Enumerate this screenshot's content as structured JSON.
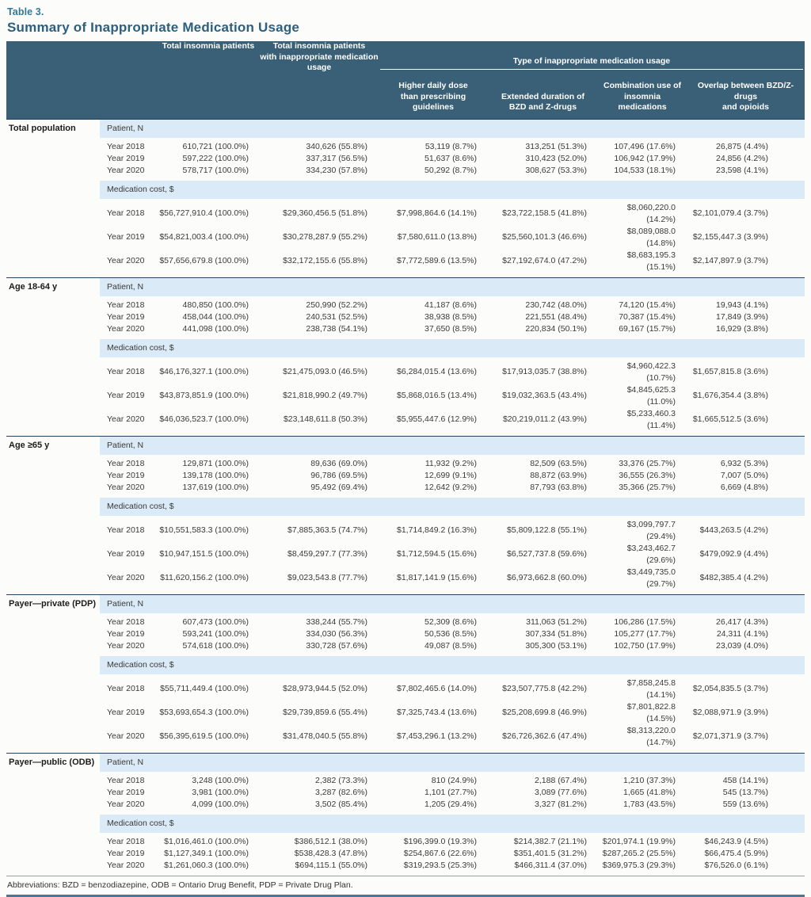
{
  "table_label": "Table 3.",
  "title": "Summary of Inappropriate Medication Usage",
  "colors": {
    "header_bg": "#3a6078",
    "band_bg": "#daeaf6",
    "table_label": "#2f7a9c",
    "title": "#2d5f7e",
    "section_rule": "#24425c",
    "bottom_rule": "#53748e"
  },
  "header": {
    "col_total": "Total insomnia patients",
    "col_inappropriate": "Total insomnia patients\nwith inappropriate medication\nusage",
    "group_label": "Type of inappropriate medication usage",
    "subcolumns": [
      "Higher daily dose\nthan prescribing guidelines",
      "Extended duration of\nBZD and Z-drugs",
      "Combination use of\ninsomnia medications",
      "Overlap between BZD/Z-drugs\nand opioids"
    ]
  },
  "sections": [
    {
      "label": "Total population",
      "groups": [
        {
          "label": "Patient, N",
          "rows": [
            {
              "year": "Year 2018",
              "values": [
                "610,721 (100.0%)",
                "340,626 (55.8%)",
                "53,119 (8.7%)",
                "313,251 (51.3%)",
                "107,496 (17.6%)",
                "26,875 (4.4%)"
              ]
            },
            {
              "year": "Year 2019",
              "values": [
                "597,222 (100.0%)",
                "337,317 (56.5%)",
                "51,637 (8.6%)",
                "310,423 (52.0%)",
                "106,942 (17.9%)",
                "24,856 (4.2%)"
              ]
            },
            {
              "year": "Year 2020",
              "values": [
                "578,717 (100.0%)",
                "334,230 (57.8%)",
                "50,292 (8.7%)",
                "308,627 (53.3%)",
                "104,533 (18.1%)",
                "23,598 (4.1%)"
              ]
            }
          ]
        },
        {
          "label": "Medication cost, $",
          "rows": [
            {
              "year": "Year 2018",
              "values": [
                "$56,727,910.4 (100.0%)",
                "$29,360,456.5 (51.8%)",
                "$7,998,864.6 (14.1%)",
                "$23,722,158.5 (41.8%)",
                "$8,060,220.0 (14.2%)",
                "$2,101,079.4 (3.7%)"
              ]
            },
            {
              "year": "Year 2019",
              "values": [
                "$54,821,003.4 (100.0%)",
                "$30,278,287.9 (55.2%)",
                "$7,580,611.0 (13.8%)",
                "$25,560,101.3 (46.6%)",
                "$8,089,088.0 (14.8%)",
                "$2,155,447.3 (3.9%)"
              ]
            },
            {
              "year": "Year 2020",
              "values": [
                "$57,656,679.8 (100.0%)",
                "$32,172,155.6 (55.8%)",
                "$7,772,589.6 (13.5%)",
                "$27,192,674.0 (47.2%)",
                "$8,683,195.3 (15.1%)",
                "$2,147,897.9 (3.7%)"
              ]
            }
          ]
        }
      ]
    },
    {
      "label": "Age 18-64 y",
      "groups": [
        {
          "label": "Patient, N",
          "rows": [
            {
              "year": "Year 2018",
              "values": [
                "480,850 (100.0%)",
                "250,990 (52.2%)",
                "41,187 (8.6%)",
                "230,742 (48.0%)",
                "74,120 (15.4%)",
                "19,943 (4.1%)"
              ]
            },
            {
              "year": "Year 2019",
              "values": [
                "458,044 (100.0%)",
                "240,531 (52.5%)",
                "38,938 (8.5%)",
                "221,551 (48.4%)",
                "70,387 (15.4%)",
                "17,849 (3.9%)"
              ]
            },
            {
              "year": "Year 2020",
              "values": [
                "441,098 (100.0%)",
                "238,738 (54.1%)",
                "37,650 (8.5%)",
                "220,834 (50.1%)",
                "69,167 (15.7%)",
                "16,929 (3.8%)"
              ]
            }
          ]
        },
        {
          "label": "Medication cost, $",
          "rows": [
            {
              "year": "Year 2018",
              "values": [
                "$46,176,327.1 (100.0%)",
                "$21,475,093.0 (46.5%)",
                "$6,284,015.4 (13.6%)",
                "$17,913,035.7 (38.8%)",
                "$4,960,422.3 (10.7%)",
                "$1,657,815.8 (3.6%)"
              ]
            },
            {
              "year": "Year 2019",
              "values": [
                "$43,873,851.9 (100.0%)",
                "$21,818,990.2 (49.7%)",
                "$5,868,016.5 (13.4%)",
                "$19,032,363.5 (43.4%)",
                "$4,845,625.3 (11.0%)",
                "$1,676,354.4 (3.8%)"
              ]
            },
            {
              "year": "Year 2020",
              "values": [
                "$46,036,523.7 (100.0%)",
                "$23,148,611.8 (50.3%)",
                "$5,955,447.6 (12.9%)",
                "$20,219,011.2 (43.9%)",
                "$5,233,460.3 (11.4%)",
                "$1,665,512.5 (3.6%)"
              ]
            }
          ]
        }
      ]
    },
    {
      "label": "Age ≥65 y",
      "groups": [
        {
          "label": "Patient, N",
          "rows": [
            {
              "year": "Year 2018",
              "values": [
                "129,871 (100.0%)",
                "89,636 (69.0%)",
                "11,932 (9.2%)",
                "82,509 (63.5%)",
                "33,376 (25.7%)",
                "6,932 (5.3%)"
              ]
            },
            {
              "year": "Year 2019",
              "values": [
                "139,178 (100.0%)",
                "96,786 (69.5%)",
                "12,699 (9.1%)",
                "88,872 (63.9%)",
                "36,555 (26.3%)",
                "7,007 (5.0%)"
              ]
            },
            {
              "year": "Year 2020",
              "values": [
                "137,619 (100.0%)",
                "95,492 (69.4%)",
                "12,642 (9.2%)",
                "87,793 (63.8%)",
                "35,366 (25.7%)",
                "6,669 (4.8%)"
              ]
            }
          ]
        },
        {
          "label": "Medication cost, $",
          "rows": [
            {
              "year": "Year 2018",
              "values": [
                "$10,551,583.3 (100.0%)",
                "$7,885,363.5 (74.7%)",
                "$1,714,849.2 (16.3%)",
                "$5,809,122.8 (55.1%)",
                "$3,099,797.7 (29.4%)",
                "$443,263.5 (4.2%)"
              ]
            },
            {
              "year": "Year 2019",
              "values": [
                "$10,947,151.5 (100.0%)",
                "$8,459,297.7 (77.3%)",
                "$1,712,594.5 (15.6%)",
                "$6,527,737.8 (59.6%)",
                "$3,243,462.7 (29.6%)",
                "$479,092.9 (4.4%)"
              ]
            },
            {
              "year": "Year 2020",
              "values": [
                "$11,620,156.2 (100.0%)",
                "$9,023,543.8 (77.7%)",
                "$1,817,141.9 (15.6%)",
                "$6,973,662.8 (60.0%)",
                "$3,449,735.0 (29.7%)",
                "$482,385.4 (4.2%)"
              ]
            }
          ]
        }
      ]
    },
    {
      "label": "Payer—private (PDP)",
      "groups": [
        {
          "label": "Patient, N",
          "rows": [
            {
              "year": "Year 2018",
              "values": [
                "607,473 (100.0%)",
                "338,244 (55.7%)",
                "52,309 (8.6%)",
                "311,063 (51.2%)",
                "106,286 (17.5%)",
                "26,417 (4.3%)"
              ]
            },
            {
              "year": "Year 2019",
              "values": [
                "593,241 (100.0%)",
                "334,030 (56.3%)",
                "50,536 (8.5%)",
                "307,334 (51.8%)",
                "105,277 (17.7%)",
                "24,311 (4.1%)"
              ]
            },
            {
              "year": "Year 2020",
              "values": [
                "574,618 (100.0%)",
                "330,728 (57.6%)",
                "49,087 (8.5%)",
                "305,300 (53.1%)",
                "102,750 (17.9%)",
                "23,039 (4.0%)"
              ]
            }
          ]
        },
        {
          "label": "Medication cost, $",
          "rows": [
            {
              "year": "Year 2018",
              "values": [
                "$55,711,449.4 (100.0%)",
                "$28,973,944.5 (52.0%)",
                "$7,802,465.6 (14.0%)",
                "$23,507,775.8 (42.2%)",
                "$7,858,245.8 (14.1%)",
                "$2,054,835.5 (3.7%)"
              ]
            },
            {
              "year": "Year 2019",
              "values": [
                "$53,693,654.3 (100.0%)",
                "$29,739,859.6 (55.4%)",
                "$7,325,743.4 (13.6%)",
                "$25,208,699.8 (46.9%)",
                "$7,801,822.8 (14.5%)",
                "$2,088,971.9 (3.9%)"
              ]
            },
            {
              "year": "Year 2020",
              "values": [
                "$56,395,619.5 (100.0%)",
                "$31,478,040.5 (55.8%)",
                "$7,453,296.1 (13.2%)",
                "$26,726,362.6 (47.4%)",
                "$8,313,220.0 (14.7%)",
                "$2,071,371.9 (3.7%)"
              ]
            }
          ]
        }
      ]
    },
    {
      "label": "Payer—public (ODB)",
      "groups": [
        {
          "label": "Patient, N",
          "rows": [
            {
              "year": "Year 2018",
              "values": [
                "3,248 (100.0%)",
                "2,382 (73.3%)",
                "810 (24.9%)",
                "2,188 (67.4%)",
                "1,210 (37.3%)",
                "458 (14.1%)"
              ]
            },
            {
              "year": "Year 2019",
              "values": [
                "3,981 (100.0%)",
                "3,287 (82.6%)",
                "1,101 (27.7%)",
                "3,089 (77.6%)",
                "1,665 (41.8%)",
                "545 (13.7%)"
              ]
            },
            {
              "year": "Year 2020",
              "values": [
                "4,099 (100.0%)",
                "3,502 (85.4%)",
                "1,205 (29.4%)",
                "3,327 (81.2%)",
                "1,783 (43.5%)",
                "559 (13.6%)"
              ]
            }
          ]
        },
        {
          "label": "Medication cost, $",
          "rows": [
            {
              "year": "Year 2018",
              "values": [
                "$1,016,461.0 (100.0%)",
                "$386,512.1 (38.0%)",
                "$196,399.0 (19.3%)",
                "$214,382.7 (21.1%)",
                "$201,974.1 (19.9%)",
                "$46,243.9 (4.5%)"
              ]
            },
            {
              "year": "Year 2019",
              "values": [
                "$1,127,349.1 (100.0%)",
                "$538,428.3 (47.8%)",
                "$254,867.6 (22.6%)",
                "$351,401.5 (31.2%)",
                "$287,265.2 (25.5%)",
                "$66,475.4 (5.9%)"
              ]
            },
            {
              "year": "Year 2020",
              "values": [
                "$1,261,060.3 (100.0%)",
                "$694,115.1 (55.0%)",
                "$319,293.5 (25.3%)",
                "$466,311.4 (37.0%)",
                "$369,975.3 (29.3%)",
                "$76,526.0 (6.1%)"
              ]
            }
          ]
        }
      ]
    }
  ],
  "footnote": "Abbreviations: BZD = benzodiazepine, ODB = Ontario Drug Benefit, PDP = Private Drug Plan."
}
